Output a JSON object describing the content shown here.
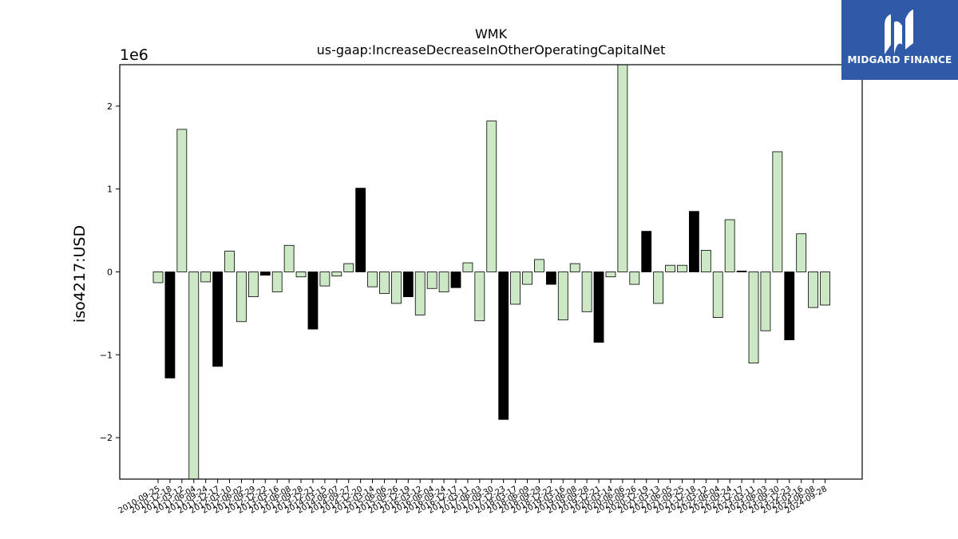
{
  "chart_data": {
    "type": "bar",
    "title": "WMK",
    "subtitle": "us-gaap:IncreaseDecreaseInOtherOperatingCapitalNet",
    "ylabel": "iso4217:USD",
    "xlabel": "",
    "offset_label": "1e6",
    "ylim": [
      -2500000,
      2500000
    ],
    "yticks": [
      -2000000,
      -1000000,
      0,
      1000000,
      2000000
    ],
    "ytick_labels": [
      "−2",
      "−1",
      "0",
      "1",
      "2"
    ],
    "grid": false,
    "legend": "none",
    "colors": {
      "default": "#cce8c4",
      "highlight": "#000000",
      "edge": "#000000"
    },
    "categories": [
      "2010-09-25",
      "2010-12-18",
      "2011-03-12",
      "2011-06-04",
      "2011-09-24",
      "2011-12-17",
      "2012-03-10",
      "2012-06-02",
      "2012-09-29",
      "2012-12-22",
      "2013-03-16",
      "2013-06-08",
      "2013-09-28",
      "2013-12-21",
      "2014-03-15",
      "2014-06-07",
      "2014-09-27",
      "2014-12-20",
      "2015-03-14",
      "2015-06-06",
      "2015-09-26",
      "2015-12-19",
      "2016-03-12",
      "2016-06-04",
      "2016-09-24",
      "2016-12-17",
      "2017-03-11",
      "2017-06-03",
      "2017-09-30",
      "2017-12-23",
      "2018-03-17",
      "2018-06-09",
      "2018-09-29",
      "2018-12-22",
      "2019-03-16",
      "2019-06-08",
      "2019-09-28",
      "2019-12-21",
      "2020-03-14",
      "2020-06-06",
      "2020-09-26",
      "2020-12-19",
      "2021-03-13",
      "2021-06-05",
      "2021-09-25",
      "2021-12-18",
      "2022-03-12",
      "2022-06-04",
      "2022-09-24",
      "2022-12-17",
      "2023-03-11",
      "2023-06-03",
      "2023-09-30",
      "2023-12-23",
      "2024-03-16",
      "2024-06-08",
      "2024-09-28"
    ],
    "values": [
      -130000,
      -1280000,
      1720000,
      -2500000,
      -120000,
      -1140000,
      250000,
      -600000,
      -300000,
      -40000,
      -240000,
      320000,
      -60000,
      -690000,
      -170000,
      -50000,
      100000,
      1010000,
      -180000,
      -260000,
      -380000,
      -300000,
      -520000,
      -200000,
      -240000,
      -190000,
      110000,
      -590000,
      1820000,
      -1780000,
      -390000,
      -150000,
      150000,
      -150000,
      -580000,
      100000,
      -480000,
      -850000,
      -60000,
      2500000,
      -150000,
      490000,
      -380000,
      80000,
      80000,
      730000,
      260000,
      -550000,
      630000,
      10000,
      -1100000,
      -710000,
      1450000,
      -820000,
      460000,
      -430000,
      -400000
    ],
    "highlight": [
      false,
      true,
      false,
      false,
      false,
      true,
      false,
      false,
      false,
      true,
      false,
      false,
      false,
      true,
      false,
      false,
      false,
      true,
      false,
      false,
      false,
      true,
      false,
      false,
      false,
      true,
      false,
      false,
      false,
      true,
      false,
      false,
      false,
      true,
      false,
      false,
      false,
      true,
      false,
      false,
      false,
      true,
      false,
      false,
      false,
      true,
      false,
      false,
      false,
      true,
      false,
      false,
      false,
      true,
      false,
      false,
      false
    ]
  },
  "logo": {
    "text": "MIDGARD FINANCE",
    "icon": "midgard-logo-icon"
  }
}
